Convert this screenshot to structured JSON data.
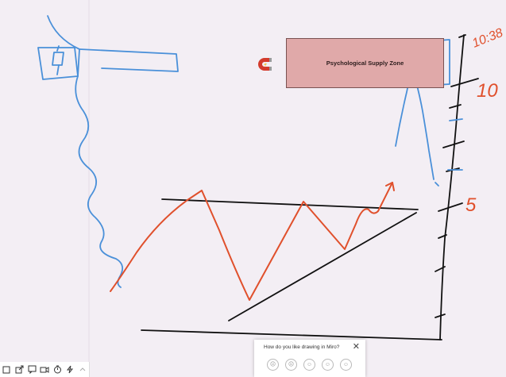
{
  "board": {
    "zone_label": "Psychological Supply Zone",
    "annotations": [
      "10:38",
      "10",
      "5"
    ]
  },
  "colors": {
    "red": "#e0502c",
    "blue": "#4a90d9",
    "black": "#111111",
    "zone": "#e0a9a9"
  },
  "feedback": {
    "title": "How do you like drawing in Miro?",
    "close_icon": "close-icon",
    "ratings": [
      "very-unsatisfied",
      "unsatisfied",
      "neutral",
      "satisfied",
      "very-satisfied"
    ]
  },
  "toolbar": {
    "icons": [
      "frames-icon",
      "share-icon",
      "comments-icon",
      "video-icon",
      "timer-icon",
      "activity-icon",
      "more-icon"
    ]
  }
}
